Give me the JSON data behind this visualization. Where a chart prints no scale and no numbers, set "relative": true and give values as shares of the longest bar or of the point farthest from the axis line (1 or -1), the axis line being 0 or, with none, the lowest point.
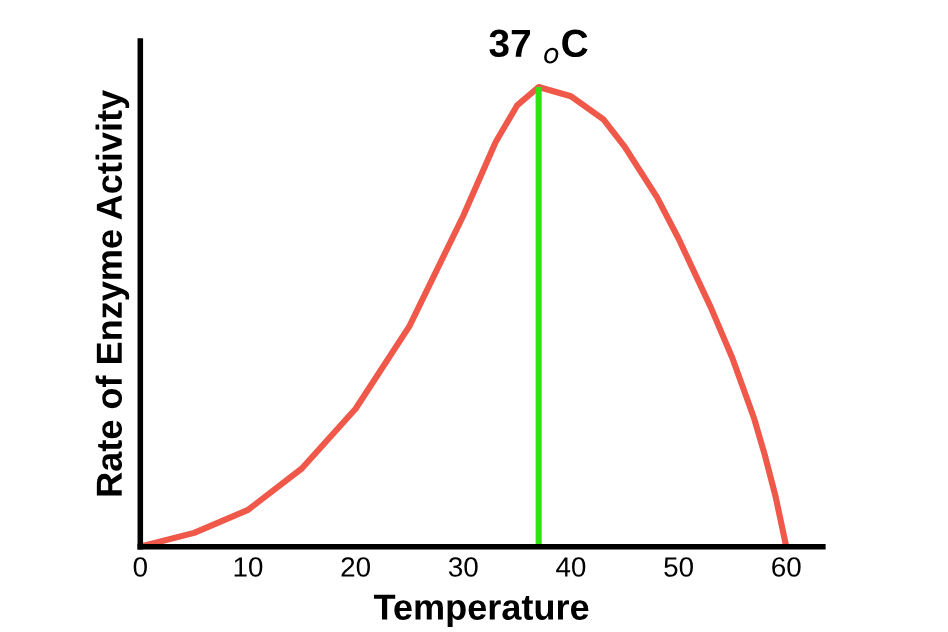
{
  "chart_data": {
    "type": "line",
    "relative": true,
    "xlabel": "Temperature",
    "ylabel": "Rate of Enzyme Activity",
    "xlim": [
      0,
      63.4
    ],
    "xticks": [
      0,
      10,
      20,
      30,
      40,
      50,
      60
    ],
    "series": [
      {
        "color": "#f0584a",
        "x": [
          0,
          5,
          10,
          15,
          20,
          25,
          30,
          33,
          35,
          37,
          40,
          43,
          45,
          48,
          50,
          53,
          55,
          57,
          58,
          59,
          60
        ],
        "values": [
          0,
          0.03,
          0.08,
          0.17,
          0.3,
          0.48,
          0.72,
          0.88,
          0.96,
          1,
          0.98,
          0.93,
          0.87,
          0.76,
          0.67,
          0.52,
          0.41,
          0.28,
          0.2,
          0.11,
          0
        ]
      }
    ],
    "ref_lines": [
      {
        "axis": "x",
        "value": 37,
        "color": "#33e014"
      }
    ],
    "annotations": [
      {
        "text": "37 $_{o}$C",
        "x": 37,
        "y": 1
      }
    ],
    "grid": false,
    "legend": false,
    "marker": "none",
    "line_style": "solid"
  }
}
